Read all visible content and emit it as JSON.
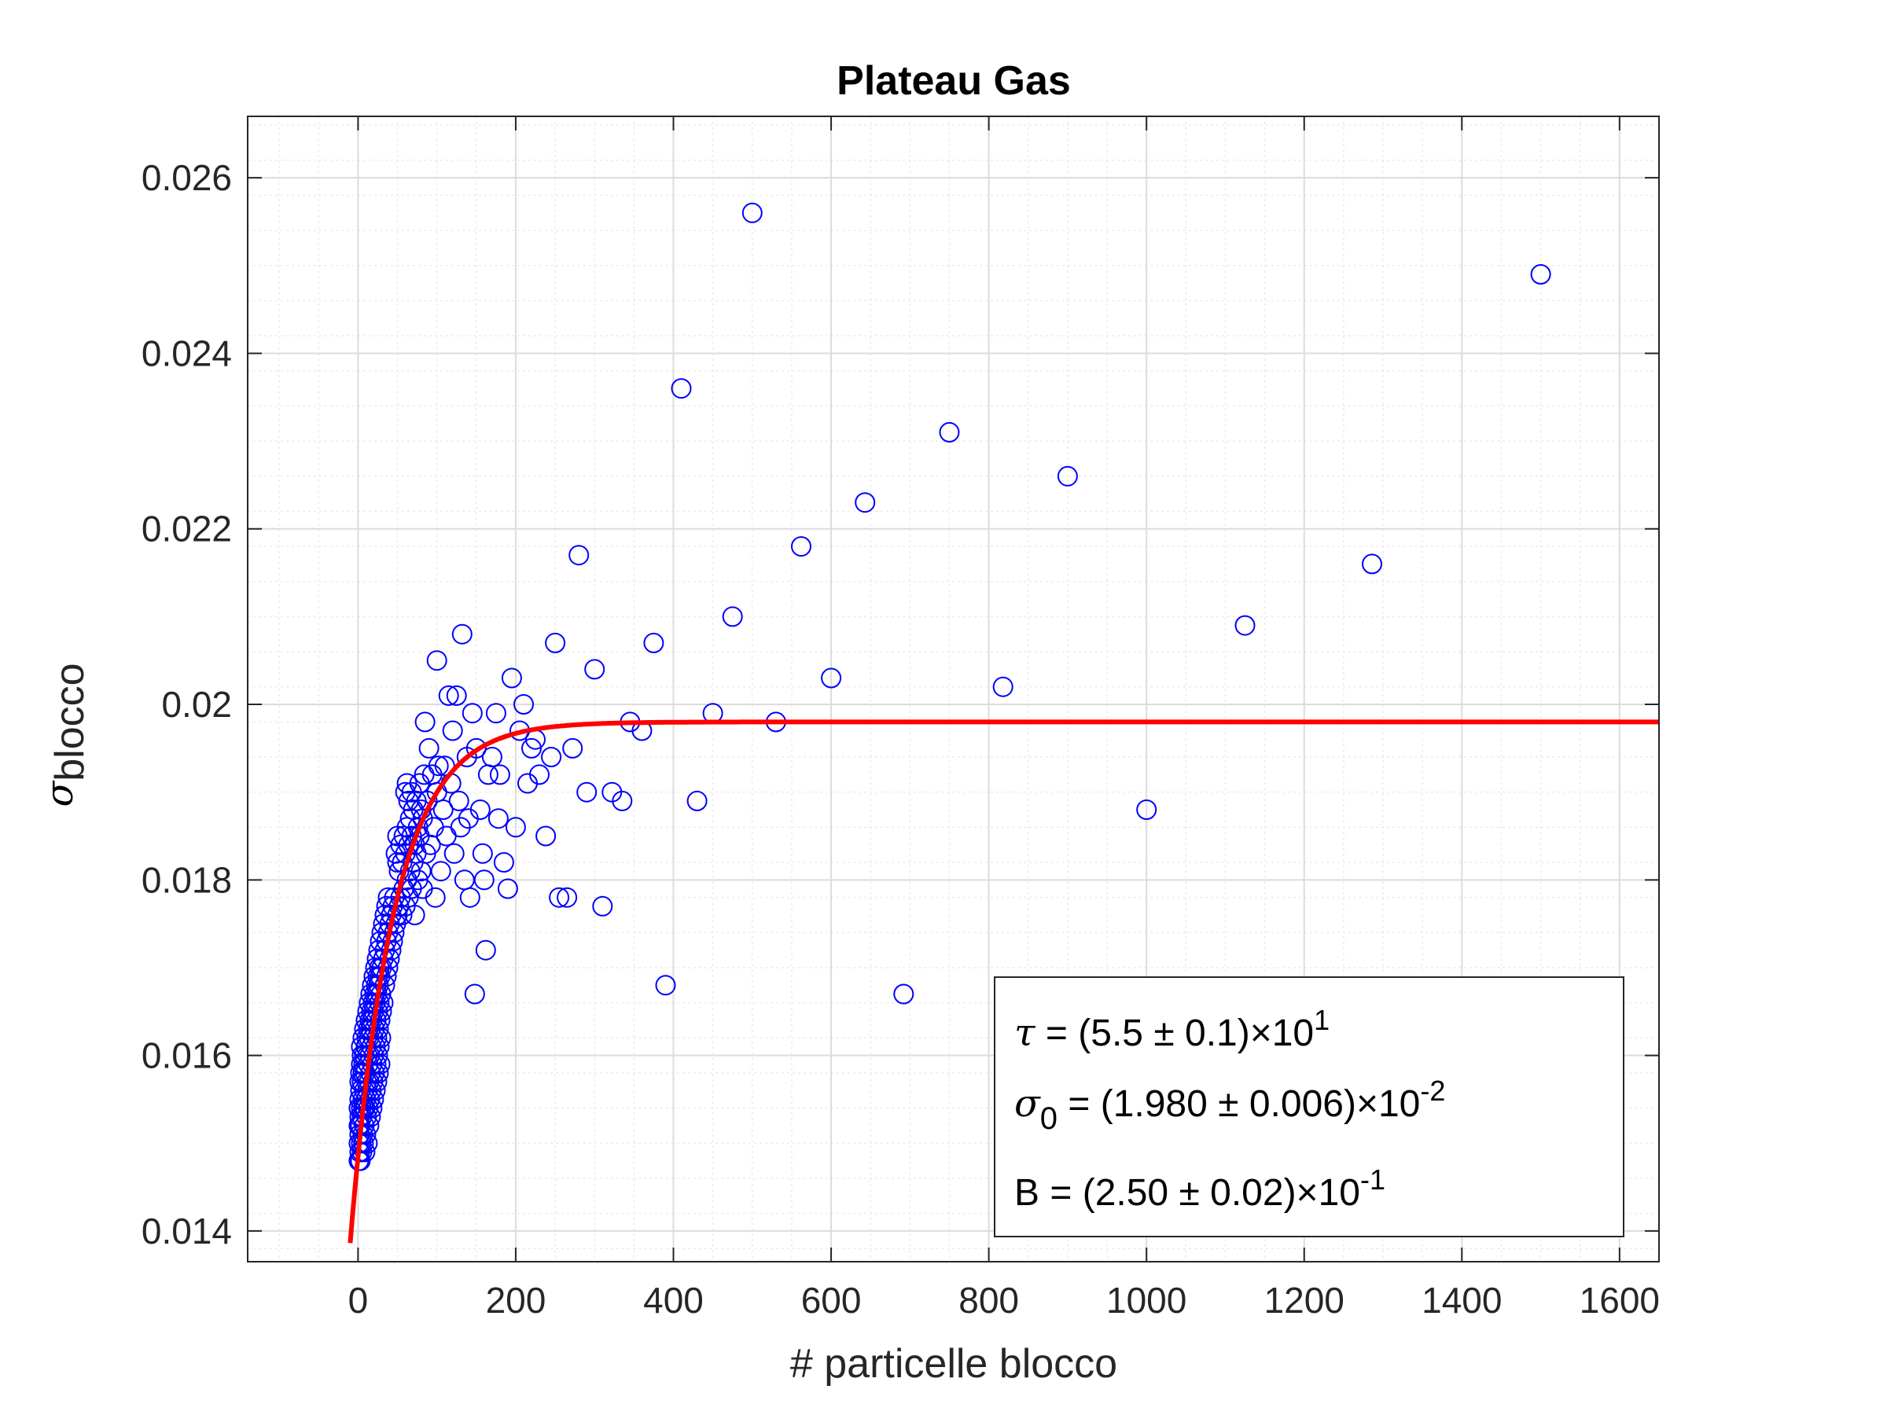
{
  "chart_data": {
    "type": "scatter",
    "title": "Plateau Gas",
    "xlabel": "# particelle blocco",
    "ylabel": {
      "symbol": "σ",
      "subscript": "blocco"
    },
    "xlim": [
      -140,
      1650
    ],
    "ylim": [
      0.01365,
      0.0267
    ],
    "xticks": [
      {
        "value": 0,
        "label": "0"
      },
      {
        "value": 200,
        "label": "200"
      },
      {
        "value": 400,
        "label": "400"
      },
      {
        "value": 600,
        "label": "600"
      },
      {
        "value": 800,
        "label": "800"
      },
      {
        "value": 1000,
        "label": "1000"
      },
      {
        "value": 1200,
        "label": "1200"
      },
      {
        "value": 1400,
        "label": "1400"
      },
      {
        "value": 1600,
        "label": "1600"
      }
    ],
    "yticks": [
      {
        "value": 0.014,
        "label": "0.014"
      },
      {
        "value": 0.016,
        "label": "0.016"
      },
      {
        "value": 0.018,
        "label": "0.018"
      },
      {
        "value": 0.02,
        "label": "0.02"
      },
      {
        "value": 0.022,
        "label": "0.022"
      },
      {
        "value": 0.024,
        "label": "0.024"
      },
      {
        "value": 0.026,
        "label": "0.026"
      }
    ],
    "grid": true,
    "minor_grid": true,
    "colors": {
      "points": "#0000ff",
      "fit": "#ff0000"
    },
    "fit": {
      "model": "sigma0 * (1 - B * exp(-x / tau))",
      "tau": 55,
      "sigma0": 0.0198,
      "B": 0.25,
      "x_range": [
        -10,
        1650
      ]
    },
    "series": [
      {
        "marker": "circle",
        "points": [
          [
            1,
            0.0148
          ],
          [
            1,
            0.015
          ],
          [
            1,
            0.0152
          ],
          [
            1,
            0.0154
          ],
          [
            2,
            0.0149
          ],
          [
            2,
            0.0151
          ],
          [
            2,
            0.0153
          ],
          [
            2,
            0.0155
          ],
          [
            2,
            0.0157
          ],
          [
            3,
            0.0148
          ],
          [
            3,
            0.0152
          ],
          [
            3,
            0.0156
          ],
          [
            3,
            0.0158
          ],
          [
            4,
            0.015
          ],
          [
            4,
            0.0154
          ],
          [
            4,
            0.0159
          ],
          [
            4,
            0.0161
          ],
          [
            5,
            0.0149
          ],
          [
            5,
            0.0153
          ],
          [
            5,
            0.0157
          ],
          [
            5,
            0.016
          ],
          [
            6,
            0.0151
          ],
          [
            6,
            0.0155
          ],
          [
            6,
            0.0158
          ],
          [
            6,
            0.0162
          ],
          [
            7,
            0.015
          ],
          [
            7,
            0.0154
          ],
          [
            7,
            0.0159
          ],
          [
            8,
            0.0152
          ],
          [
            8,
            0.0156
          ],
          [
            8,
            0.016
          ],
          [
            8,
            0.0163
          ],
          [
            9,
            0.0149
          ],
          [
            9,
            0.0154
          ],
          [
            9,
            0.0158
          ],
          [
            10,
            0.0151
          ],
          [
            10,
            0.0155
          ],
          [
            10,
            0.0161
          ],
          [
            10,
            0.0164
          ],
          [
            11,
            0.0153
          ],
          [
            11,
            0.0157
          ],
          [
            11,
            0.0162
          ],
          [
            12,
            0.015
          ],
          [
            12,
            0.0156
          ],
          [
            12,
            0.016
          ],
          [
            12,
            0.0165
          ],
          [
            13,
            0.0154
          ],
          [
            13,
            0.0159
          ],
          [
            13,
            0.0163
          ],
          [
            14,
            0.0152
          ],
          [
            14,
            0.0157
          ],
          [
            14,
            0.0162
          ],
          [
            14,
            0.0166
          ],
          [
            15,
            0.0155
          ],
          [
            15,
            0.016
          ],
          [
            15,
            0.0164
          ],
          [
            16,
            0.0153
          ],
          [
            16,
            0.0158
          ],
          [
            16,
            0.0163
          ],
          [
            16,
            0.0167
          ],
          [
            17,
            0.0156
          ],
          [
            17,
            0.0161
          ],
          [
            17,
            0.0165
          ],
          [
            18,
            0.0154
          ],
          [
            18,
            0.0159
          ],
          [
            18,
            0.0164
          ],
          [
            18,
            0.0168
          ],
          [
            19,
            0.0157
          ],
          [
            19,
            0.0162
          ],
          [
            19,
            0.0166
          ],
          [
            20,
            0.0155
          ],
          [
            20,
            0.016
          ],
          [
            20,
            0.0165
          ],
          [
            20,
            0.0169
          ],
          [
            21,
            0.0158
          ],
          [
            21,
            0.0163
          ],
          [
            21,
            0.0167
          ],
          [
            22,
            0.0156
          ],
          [
            22,
            0.0161
          ],
          [
            22,
            0.0166
          ],
          [
            22,
            0.017
          ],
          [
            23,
            0.0159
          ],
          [
            23,
            0.0164
          ],
          [
            23,
            0.0168
          ],
          [
            24,
            0.0157
          ],
          [
            24,
            0.0162
          ],
          [
            24,
            0.0167
          ],
          [
            24,
            0.0171
          ],
          [
            25,
            0.016
          ],
          [
            25,
            0.0165
          ],
          [
            25,
            0.0169
          ],
          [
            26,
            0.0158
          ],
          [
            26,
            0.0163
          ],
          [
            26,
            0.0168
          ],
          [
            26,
            0.0172
          ],
          [
            27,
            0.0161
          ],
          [
            27,
            0.0166
          ],
          [
            27,
            0.017
          ],
          [
            28,
            0.0159
          ],
          [
            28,
            0.0164
          ],
          [
            28,
            0.0169
          ],
          [
            28,
            0.0173
          ],
          [
            29,
            0.0162
          ],
          [
            29,
            0.0167
          ],
          [
            30,
            0.0165
          ],
          [
            30,
            0.017
          ],
          [
            30,
            0.0174
          ],
          [
            32,
            0.0166
          ],
          [
            32,
            0.0171
          ],
          [
            32,
            0.0175
          ],
          [
            34,
            0.0168
          ],
          [
            34,
            0.0172
          ],
          [
            34,
            0.0176
          ],
          [
            36,
            0.0169
          ],
          [
            36,
            0.0173
          ],
          [
            36,
            0.0177
          ],
          [
            38,
            0.017
          ],
          [
            38,
            0.0174
          ],
          [
            38,
            0.0178
          ],
          [
            40,
            0.0171
          ],
          [
            40,
            0.0175
          ],
          [
            42,
            0.0172
          ],
          [
            42,
            0.0176
          ],
          [
            44,
            0.0173
          ],
          [
            44,
            0.0177
          ],
          [
            46,
            0.0174
          ],
          [
            46,
            0.0178
          ],
          [
            48,
            0.0175
          ],
          [
            48,
            0.0183
          ],
          [
            50,
            0.0176
          ],
          [
            50,
            0.0182
          ],
          [
            50,
            0.0185
          ],
          [
            52,
            0.0177
          ],
          [
            52,
            0.0181
          ],
          [
            54,
            0.0178
          ],
          [
            54,
            0.0184
          ],
          [
            56,
            0.0176
          ],
          [
            56,
            0.0182
          ],
          [
            58,
            0.0179
          ],
          [
            58,
            0.0185
          ],
          [
            60,
            0.0177
          ],
          [
            60,
            0.0183
          ],
          [
            60,
            0.019
          ],
          [
            62,
            0.018
          ],
          [
            62,
            0.0186
          ],
          [
            62,
            0.0191
          ],
          [
            64,
            0.0178
          ],
          [
            64,
            0.0184
          ],
          [
            64,
            0.0189
          ],
          [
            66,
            0.0181
          ],
          [
            66,
            0.0187
          ],
          [
            68,
            0.0179
          ],
          [
            68,
            0.0185
          ],
          [
            68,
            0.019
          ],
          [
            70,
            0.0182
          ],
          [
            70,
            0.0188
          ],
          [
            72,
            0.0176
          ],
          [
            72,
            0.0184
          ],
          [
            74,
            0.0183
          ],
          [
            74,
            0.0189
          ],
          [
            76,
            0.018
          ],
          [
            76,
            0.0186
          ],
          [
            78,
            0.0185
          ],
          [
            78,
            0.0191
          ],
          [
            80,
            0.0181
          ],
          [
            80,
            0.0188
          ],
          [
            82,
            0.0179
          ],
          [
            82,
            0.0187
          ],
          [
            84,
            0.0192
          ],
          [
            85,
            0.0198
          ],
          [
            86,
            0.0183
          ],
          [
            88,
            0.0189
          ],
          [
            90,
            0.0195
          ],
          [
            92,
            0.0184
          ],
          [
            94,
            0.0192
          ],
          [
            96,
            0.0186
          ],
          [
            98,
            0.0178
          ],
          [
            100,
            0.0205
          ],
          [
            100,
            0.019
          ],
          [
            102,
            0.0193
          ],
          [
            105,
            0.0181
          ],
          [
            108,
            0.0188
          ],
          [
            110,
            0.0193
          ],
          [
            112,
            0.0185
          ],
          [
            115,
            0.0201
          ],
          [
            118,
            0.0191
          ],
          [
            120,
            0.0197
          ],
          [
            122,
            0.0183
          ],
          [
            125,
            0.0201
          ],
          [
            128,
            0.0189
          ],
          [
            130,
            0.0186
          ],
          [
            132,
            0.0208
          ],
          [
            135,
            0.018
          ],
          [
            138,
            0.0194
          ],
          [
            140,
            0.0187
          ],
          [
            142,
            0.0178
          ],
          [
            145,
            0.0199
          ],
          [
            148,
            0.0167
          ],
          [
            150,
            0.0195
          ],
          [
            155,
            0.0188
          ],
          [
            158,
            0.0183
          ],
          [
            160,
            0.018
          ],
          [
            162,
            0.0172
          ],
          [
            165,
            0.0192
          ],
          [
            170,
            0.0194
          ],
          [
            175,
            0.0199
          ],
          [
            178,
            0.0187
          ],
          [
            180,
            0.0192
          ],
          [
            185,
            0.0182
          ],
          [
            190,
            0.0179
          ],
          [
            195,
            0.0203
          ],
          [
            200,
            0.0186
          ],
          [
            205,
            0.0197
          ],
          [
            210,
            0.02
          ],
          [
            215,
            0.0191
          ],
          [
            220,
            0.0195
          ],
          [
            225,
            0.0196
          ],
          [
            230,
            0.0192
          ],
          [
            238,
            0.0185
          ],
          [
            245,
            0.0194
          ],
          [
            250,
            0.0207
          ],
          [
            255,
            0.0178
          ],
          [
            265,
            0.0178
          ],
          [
            272,
            0.0195
          ],
          [
            280,
            0.0217
          ],
          [
            290,
            0.019
          ],
          [
            300,
            0.0204
          ],
          [
            310,
            0.0177
          ],
          [
            322,
            0.019
          ],
          [
            335,
            0.0189
          ],
          [
            345,
            0.0198
          ],
          [
            360,
            0.0197
          ],
          [
            375,
            0.0207
          ],
          [
            390,
            0.0168
          ],
          [
            410,
            0.0236
          ],
          [
            430,
            0.0189
          ],
          [
            450,
            0.0199
          ],
          [
            475,
            0.021
          ],
          [
            500,
            0.0256
          ],
          [
            530,
            0.0198
          ],
          [
            562,
            0.0218
          ],
          [
            600,
            0.0203
          ],
          [
            643,
            0.0223
          ],
          [
            692,
            0.0167
          ],
          [
            750,
            0.0231
          ],
          [
            818,
            0.0202
          ],
          [
            900,
            0.0226
          ],
          [
            1000,
            0.0188
          ],
          [
            1125,
            0.0209
          ],
          [
            1286,
            0.0216
          ],
          [
            1500,
            0.0249
          ]
        ]
      }
    ],
    "legend": {
      "placement": "bottom-right",
      "tau": {
        "symbol": "τ",
        "text": " = (5.5 ± 0.1)×10",
        "exp": "1"
      },
      "sigma0": {
        "symbol": "σ",
        "sub": "0",
        "text": " = (1.980 ± 0.006)×10",
        "exp": "-2"
      },
      "B": {
        "text": "B = (2.50 ± 0.02)×10",
        "exp": "-1"
      }
    }
  }
}
